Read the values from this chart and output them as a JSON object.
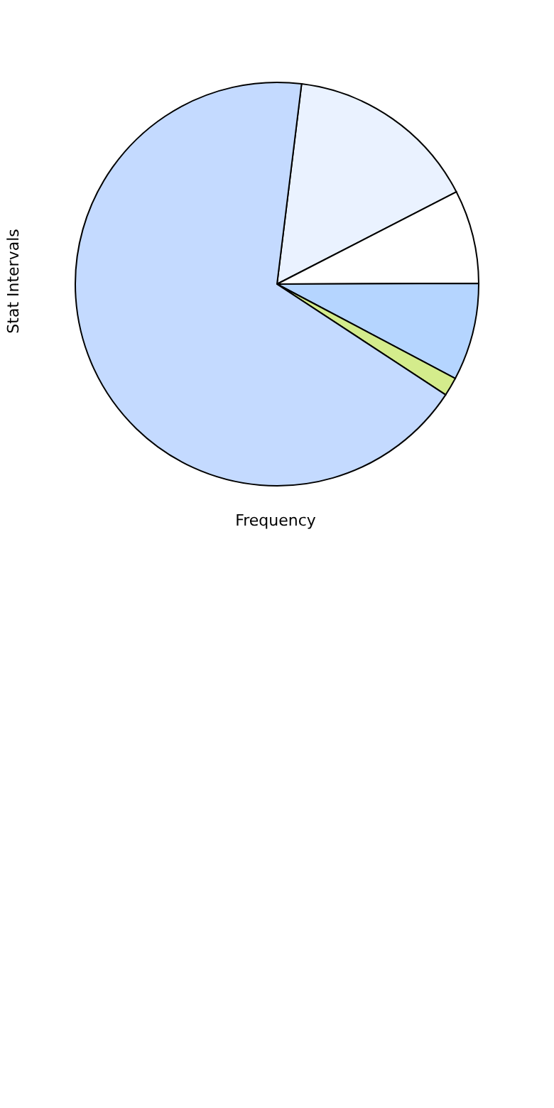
{
  "chart_data": {
    "type": "pie",
    "xlabel": "Frequency",
    "ylabel": "Stat Intervals",
    "categories": [
      null,
      null,
      null,
      null,
      null
    ],
    "values": [
      15.5,
      7.5,
      7.8,
      1.5,
      67.7
    ],
    "colors": [
      "#eaf2ff",
      "#ffffff",
      "#b5d5ff",
      "#d4ec8c",
      "#c4daff"
    ]
  }
}
